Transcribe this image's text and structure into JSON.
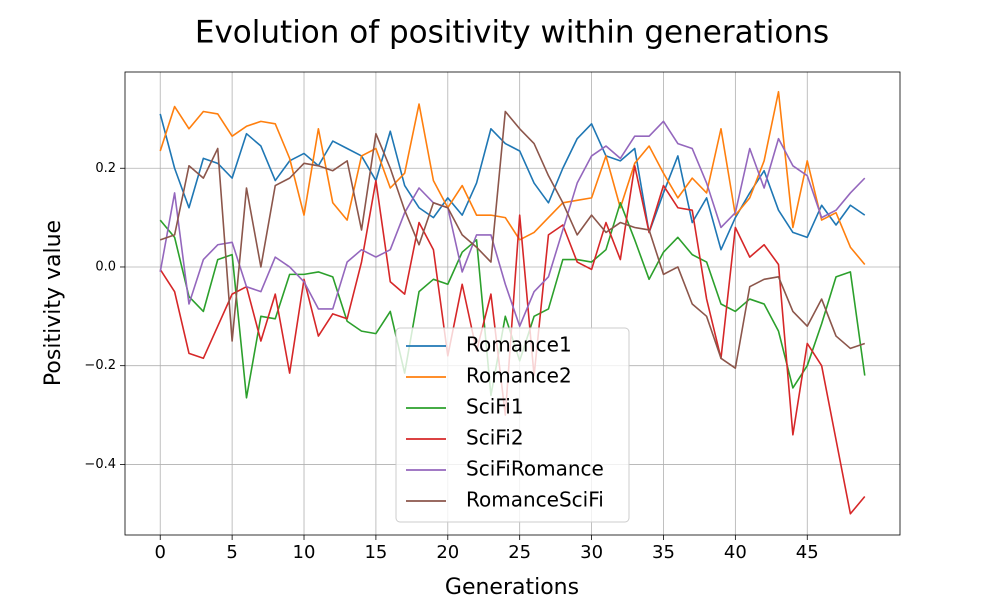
{
  "chart_data": {
    "type": "line",
    "title": "Evolution of positivity within generations",
    "xlabel": "Generations",
    "ylabel": "Positivity value",
    "x": [
      0,
      1,
      2,
      3,
      4,
      5,
      6,
      7,
      8,
      9,
      10,
      11,
      12,
      13,
      14,
      15,
      16,
      17,
      18,
      19,
      20,
      21,
      22,
      23,
      24,
      25,
      26,
      27,
      28,
      29,
      30,
      31,
      32,
      33,
      34,
      35,
      36,
      37,
      38,
      39,
      40,
      41,
      42,
      43,
      44,
      45,
      46,
      47,
      48,
      49
    ],
    "xlim": [
      -2.45,
      51.45
    ],
    "xticks": [
      0,
      5,
      10,
      15,
      20,
      25,
      30,
      35,
      40,
      45
    ],
    "ylim": [
      -0.543,
      0.395
    ],
    "yticks": [
      {
        "value": -0.4,
        "label": "−0.4"
      },
      {
        "value": -0.2,
        "label": "−0.2"
      },
      {
        "value": 0,
        "label": "0.0"
      },
      {
        "value": 0.2,
        "label": "0.2"
      }
    ],
    "grid": true,
    "legend": "lower center",
    "series": [
      {
        "name": "Romance1",
        "color": "#1f77b4",
        "values": [
          0.31,
          0.2,
          0.12,
          0.22,
          0.21,
          0.18,
          0.27,
          0.245,
          0.175,
          0.215,
          0.23,
          0.205,
          0.255,
          0.24,
          0.225,
          0.175,
          0.275,
          0.165,
          0.12,
          0.1,
          0.14,
          0.105,
          0.17,
          0.28,
          0.25,
          0.235,
          0.17,
          0.13,
          0.2,
          0.26,
          0.29,
          0.225,
          0.215,
          0.24,
          0.07,
          0.15,
          0.225,
          0.09,
          0.14,
          0.035,
          0.1,
          0.15,
          0.195,
          0.115,
          0.07,
          0.06,
          0.125,
          0.085,
          0.125,
          0.105
        ]
      },
      {
        "name": "Romance2",
        "color": "#ff7f0e",
        "values": [
          0.235,
          0.325,
          0.28,
          0.315,
          0.31,
          0.265,
          0.285,
          0.295,
          0.29,
          0.22,
          0.105,
          0.28,
          0.13,
          0.095,
          0.225,
          0.24,
          0.16,
          0.19,
          0.33,
          0.175,
          0.12,
          0.165,
          0.105,
          0.105,
          0.1,
          0.055,
          0.07,
          0.1,
          0.13,
          0.135,
          0.14,
          0.225,
          0.12,
          0.21,
          0.245,
          0.19,
          0.14,
          0.18,
          0.15,
          0.28,
          0.105,
          0.14,
          0.215,
          0.355,
          0.08,
          0.215,
          0.095,
          0.11,
          0.04,
          0.005
        ]
      },
      {
        "name": "SciFi1",
        "color": "#2ca02c",
        "values": [
          0.095,
          0.06,
          -0.06,
          -0.09,
          0.015,
          0.025,
          -0.265,
          -0.1,
          -0.105,
          -0.015,
          -0.015,
          -0.01,
          -0.02,
          -0.11,
          -0.13,
          -0.135,
          -0.09,
          -0.215,
          -0.05,
          -0.025,
          -0.035,
          0.03,
          0.055,
          -0.26,
          -0.1,
          -0.19,
          -0.1,
          -0.085,
          0.015,
          0.015,
          0.01,
          0.035,
          0.13,
          0.055,
          -0.025,
          0.03,
          0.06,
          0.025,
          0.01,
          -0.075,
          -0.09,
          -0.065,
          -0.075,
          -0.13,
          -0.245,
          -0.2,
          -0.115,
          -0.02,
          -0.01,
          -0.22
        ]
      },
      {
        "name": "SciFi2",
        "color": "#d62728",
        "values": [
          -0.005,
          -0.05,
          -0.175,
          -0.185,
          -0.12,
          -0.055,
          -0.04,
          -0.15,
          -0.055,
          -0.215,
          -0.025,
          -0.14,
          -0.095,
          -0.105,
          0.01,
          0.175,
          -0.03,
          -0.055,
          0.09,
          0.035,
          -0.18,
          -0.035,
          -0.17,
          -0.055,
          -0.3,
          0.105,
          -0.22,
          0.065,
          0.085,
          0.01,
          -0.005,
          0.09,
          0.015,
          0.205,
          0.07,
          0.165,
          0.12,
          0.115,
          -0.065,
          -0.185,
          0.08,
          0.02,
          0.045,
          0.005,
          -0.34,
          -0.155,
          -0.2,
          -0.35,
          -0.5,
          -0.465
        ]
      },
      {
        "name": "SciFiRomance",
        "color": "#9467bd",
        "values": [
          -0.01,
          0.15,
          -0.075,
          0.015,
          0.045,
          0.05,
          -0.04,
          -0.05,
          0.02,
          0.0,
          -0.03,
          -0.085,
          -0.085,
          0.01,
          0.035,
          0.02,
          0.035,
          0.11,
          0.16,
          0.13,
          0.12,
          -0.01,
          0.065,
          0.065,
          -0.035,
          -0.12,
          -0.05,
          -0.02,
          0.075,
          0.17,
          0.225,
          0.245,
          0.22,
          0.265,
          0.265,
          0.295,
          0.25,
          0.24,
          0.17,
          0.08,
          0.11,
          0.24,
          0.16,
          0.26,
          0.205,
          0.185,
          0.1,
          0.115,
          0.15,
          0.18
        ]
      },
      {
        "name": "RomanceSciFi",
        "color": "#8c564b",
        "values": [
          0.055,
          0.065,
          0.205,
          0.18,
          0.24,
          -0.15,
          0.16,
          0.0,
          0.165,
          0.18,
          0.21,
          0.205,
          0.195,
          0.215,
          0.075,
          0.27,
          0.2,
          0.115,
          0.045,
          0.13,
          0.12,
          0.065,
          0.04,
          0.01,
          0.315,
          0.28,
          0.25,
          0.185,
          0.13,
          0.065,
          0.105,
          0.07,
          0.09,
          0.08,
          0.075,
          -0.015,
          0.0,
          -0.075,
          -0.1,
          -0.185,
          -0.205,
          -0.04,
          -0.025,
          -0.02,
          -0.09,
          -0.12,
          -0.065,
          -0.14,
          -0.165,
          -0.155
        ]
      }
    ]
  }
}
